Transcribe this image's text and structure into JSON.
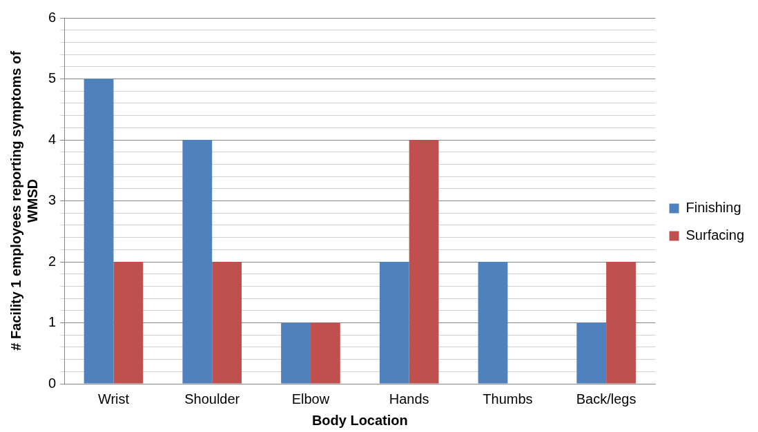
{
  "chart_data": {
    "type": "bar",
    "xlabel": "Body Location",
    "ylabel": "# Facility 1 employees reporting symptoms of WMSD",
    "categories": [
      "Wrist",
      "Shoulder",
      "Elbow",
      "Hands",
      "Thumbs",
      "Back/legs"
    ],
    "series": [
      {
        "name": "Finishing",
        "color": "#4f81bd",
        "values": [
          5,
          4,
          1,
          2,
          2,
          1
        ]
      },
      {
        "name": "Surfacing",
        "color": "#c0504d",
        "values": [
          2,
          2,
          1,
          4,
          0,
          2
        ]
      }
    ],
    "ylim": [
      0,
      6
    ],
    "yticks": [
      0,
      {
        "value": 0.2,
        "label": null
      },
      {
        "value": 0.4,
        "label": null
      },
      {
        "value": 0.6,
        "label": null
      },
      {
        "value": 0.8,
        "label": null
      },
      1,
      {
        "value": 1.2,
        "label": null
      },
      {
        "value": 1.4,
        "label": null
      },
      {
        "value": 1.6,
        "label": null
      },
      {
        "value": 1.8,
        "label": null
      },
      2,
      {
        "value": 2.2,
        "label": null
      },
      {
        "value": 2.4,
        "label": null
      },
      {
        "value": 2.6,
        "label": null
      },
      {
        "value": 2.8,
        "label": null
      },
      3,
      {
        "value": 3.2,
        "label": null
      },
      {
        "value": 3.4,
        "label": null
      },
      {
        "value": 3.6,
        "label": null
      },
      {
        "value": 3.8,
        "label": null
      },
      4,
      {
        "value": 4.2,
        "label": null
      },
      {
        "value": 4.4,
        "label": null
      },
      {
        "value": 4.6,
        "label": null
      },
      {
        "value": 4.8,
        "label": null
      },
      5,
      {
        "value": 5.2,
        "label": null
      },
      {
        "value": 5.4,
        "label": null
      },
      {
        "value": 5.6,
        "label": null
      },
      {
        "value": 5.8,
        "label": null
      },
      6
    ],
    "grid": "y",
    "legend": "right"
  }
}
